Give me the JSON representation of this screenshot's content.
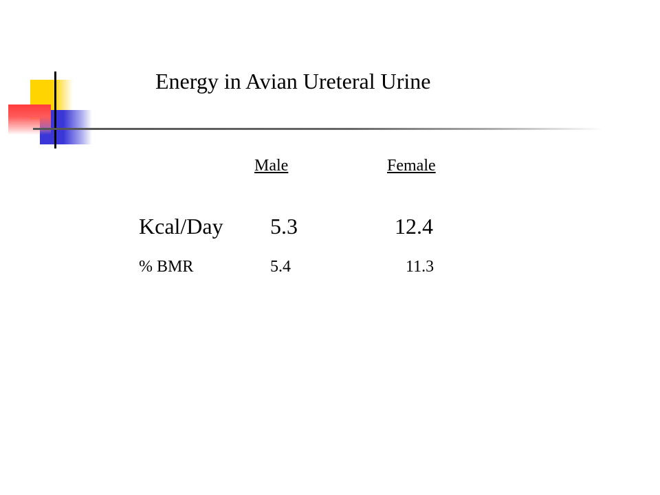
{
  "slide": {
    "title": "Energy in Avian Ureteral Urine",
    "columns": {
      "male": "Male",
      "female": "Female"
    },
    "rows": [
      {
        "label": "Kcal/Day",
        "male": "5.3",
        "female": "12.4"
      },
      {
        "label": "% BMR",
        "male": "5.4",
        "female": "11.3"
      }
    ],
    "logo": {
      "yellow": "#ffd400",
      "red": "#ff3b3b",
      "blue": "#3a36d8"
    }
  }
}
